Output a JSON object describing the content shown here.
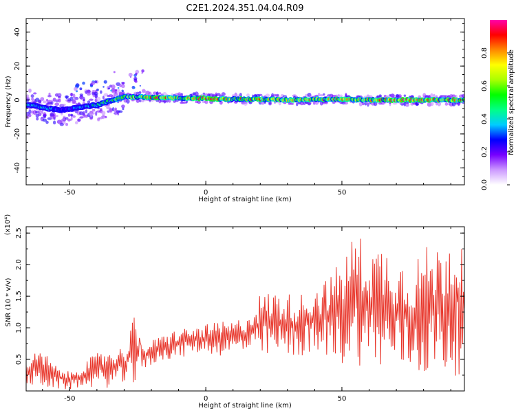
{
  "figure_title": "C2E1.2024.351.04.04.R09",
  "chart_data": [
    {
      "type": "heatmap",
      "xlabel": "Height of straight line (km)",
      "ylabel": "Frequency (Hz)",
      "xlim": [
        -66,
        95
      ],
      "ylim": [
        -50,
        48
      ],
      "x_ticks": [
        -50,
        0,
        50
      ],
      "y_ticks": [
        -40,
        -20,
        0,
        20,
        40
      ],
      "grid": false,
      "colorbar": {
        "label": "Normalized spectral amplitude",
        "range": [
          0.0,
          1.0
        ],
        "ticks": [
          "0.0",
          "0.2",
          "0.4",
          "0.6",
          "0.8"
        ],
        "colors": [
          "#ffffff",
          "#cc99ff",
          "#7700ff",
          "#0000ff",
          "#00ccff",
          "#00ff88",
          "#00ff00",
          "#aaff00",
          "#ffff00",
          "#ff8800",
          "#ff0000",
          "#ff00aa"
        ]
      },
      "ridge": {
        "description_note": "",
        "x": [
          -64,
          -58,
          -52,
          -46,
          -40,
          -34,
          -30,
          -20,
          -10,
          0,
          10,
          20,
          30,
          40,
          50,
          60,
          70,
          80,
          93
        ],
        "freq": [
          -3,
          -5,
          -6,
          -4,
          -3,
          0,
          2,
          1.5,
          1,
          1,
          0.5,
          0.5,
          0,
          0.5,
          0.5,
          0,
          0,
          0,
          0
        ],
        "amplitude": [
          0.4,
          0.45,
          0.35,
          0.4,
          0.5,
          0.55,
          0.65,
          0.95,
          0.75,
          0.95,
          0.8,
          0.85,
          0.75,
          0.8,
          0.8,
          0.8,
          0.95,
          0.95,
          0.85
        ]
      }
    },
    {
      "type": "line",
      "xlabel": "Height of straight line (km)",
      "ylabel": "SNR (10 * v/v)",
      "y_multiplier": "(x10⁴)",
      "xlim": [
        -66,
        95
      ],
      "ylim": [
        0,
        2.6
      ],
      "x_ticks": [
        -50,
        0,
        50
      ],
      "y_ticks": [
        0.5,
        1.0,
        1.5,
        2.0,
        2.5
      ],
      "color": "#e8362b",
      "grid": false,
      "envelope": {
        "x": [
          -66,
          -60,
          -55,
          -50,
          -45,
          -40,
          -35,
          -30,
          -26,
          -24,
          -20,
          -15,
          -10,
          -5,
          0,
          5,
          10,
          15,
          20,
          25,
          30,
          35,
          40,
          45,
          50,
          55,
          60,
          65,
          70,
          75,
          80,
          85,
          90,
          95
        ],
        "low": [
          0.05,
          0.05,
          0.02,
          0.02,
          0.05,
          0.05,
          0.05,
          0.1,
          0.1,
          0.3,
          0.4,
          0.5,
          0.5,
          0.6,
          0.6,
          0.55,
          0.6,
          0.6,
          0.5,
          0.55,
          0.5,
          0.55,
          0.5,
          0.55,
          0.4,
          0.4,
          0.4,
          0.3,
          0.3,
          0.3,
          0.2,
          0.3,
          0.2,
          0.3
        ],
        "high": [
          0.55,
          0.65,
          0.4,
          0.3,
          0.45,
          0.6,
          0.7,
          0.7,
          1.2,
          0.75,
          0.8,
          0.9,
          1.0,
          1.0,
          1.05,
          1.1,
          1.1,
          1.2,
          1.55,
          1.6,
          1.55,
          1.55,
          1.7,
          1.8,
          2.1,
          2.55,
          2.3,
          2.35,
          2.2,
          2.0,
          2.3,
          2.3,
          2.55,
          2.6
        ]
      }
    }
  ]
}
